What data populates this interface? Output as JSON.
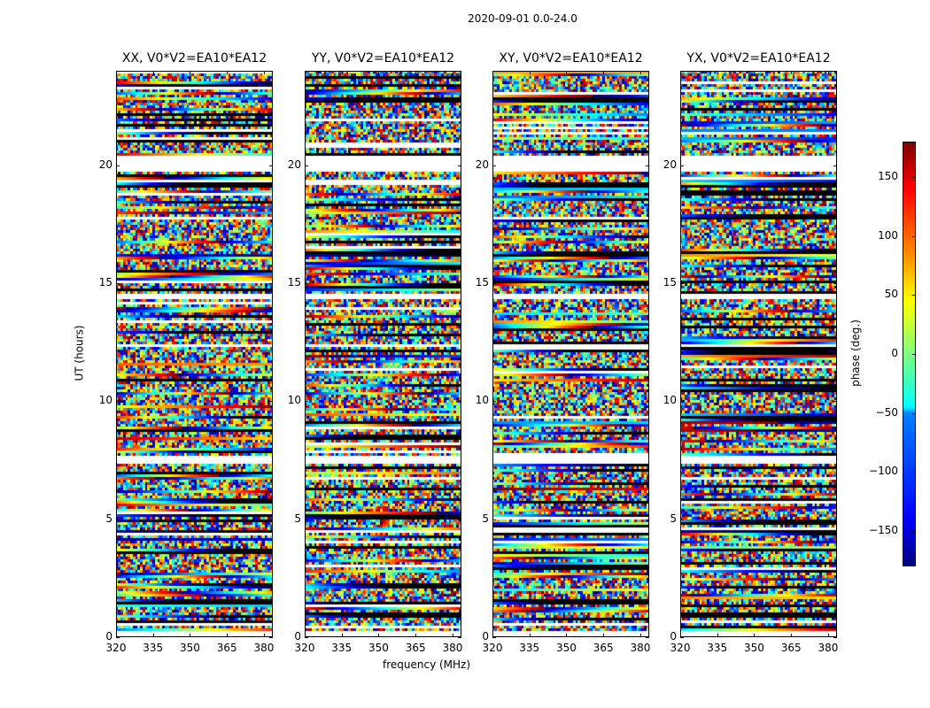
{
  "chart_data": {
    "type": "heatmap",
    "suptitle": "2020-09-01 0.0-24.0",
    "panels": [
      {
        "title": "XX, V0*V2=EA10*EA12"
      },
      {
        "title": "YY, V0*V2=EA10*EA12"
      },
      {
        "title": "XY, V0*V2=EA10*EA12"
      },
      {
        "title": "YX, V0*V2=EA10*EA12"
      }
    ],
    "xlabel": "frequency (MHz)",
    "ylabel": "UT (hours)",
    "xlim": [
      320,
      383.6
    ],
    "ylim": [
      0,
      24
    ],
    "xticks": [
      "320",
      "335",
      "350",
      "365",
      "380"
    ],
    "xtick_values": [
      320,
      335,
      350,
      365,
      380
    ],
    "yticks": [
      "0",
      "5",
      "10",
      "15",
      "20"
    ],
    "ytick_values": [
      0,
      5,
      10,
      15,
      20
    ],
    "flagged_hours": [
      [
        19.8,
        20.5
      ],
      [
        7.4,
        7.7
      ],
      [
        14.4,
        14.6
      ],
      [
        12.4,
        12.5
      ],
      [
        0.1,
        0.3
      ]
    ],
    "colorbar": {
      "label": "phase (deg.)",
      "range": [
        -180,
        180
      ],
      "ticks": [
        "−150",
        "−100",
        "−50",
        "0",
        "50",
        "100",
        "150"
      ],
      "tick_values": [
        -150,
        -100,
        -50,
        0,
        50,
        100,
        150
      ],
      "colormap": "jet"
    }
  }
}
